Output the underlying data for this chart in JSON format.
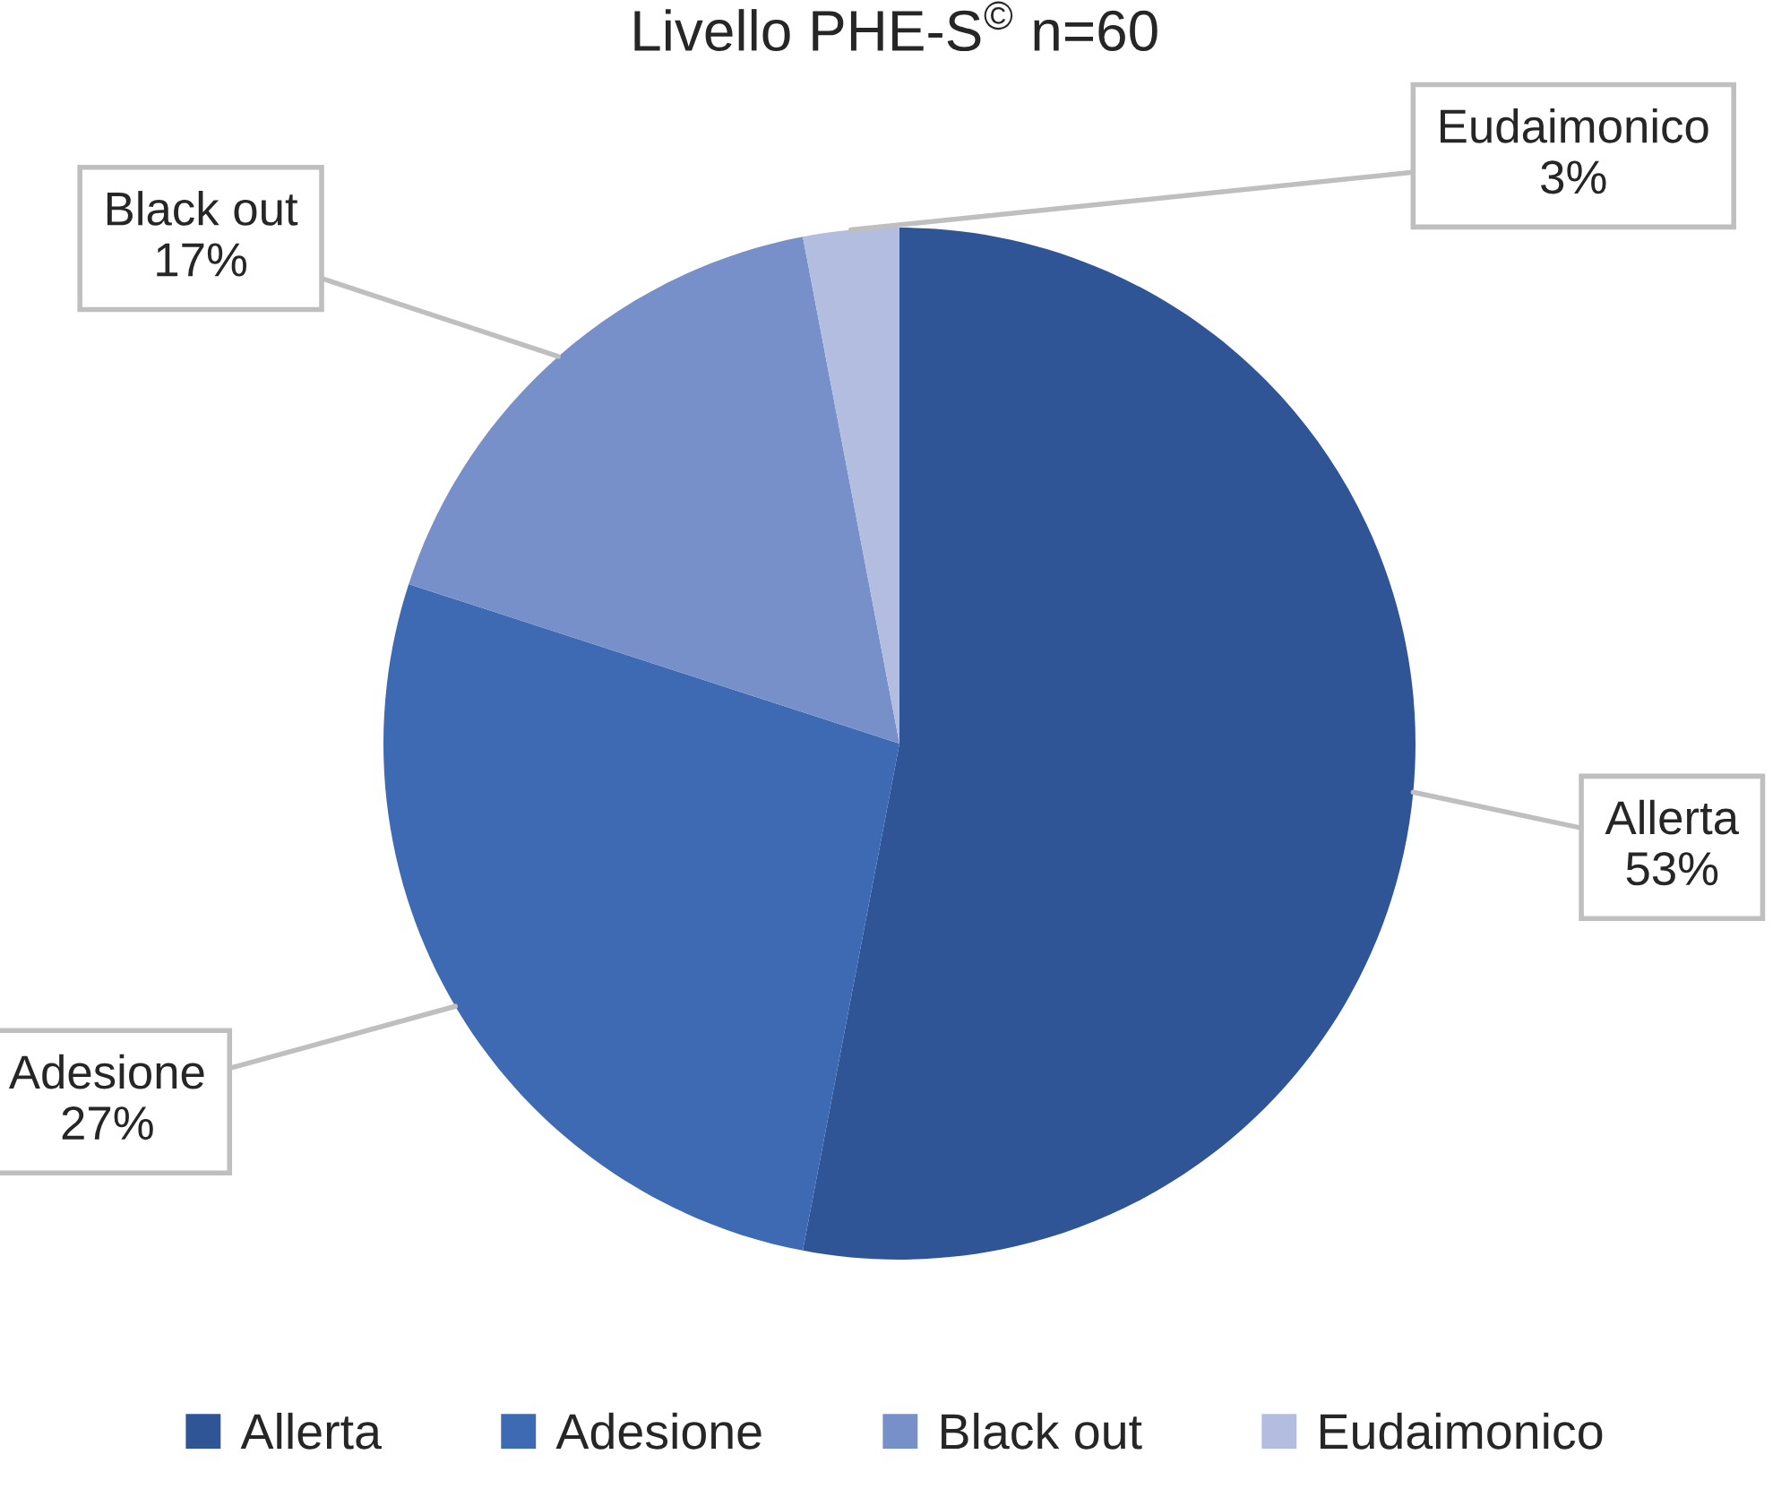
{
  "chart_data": {
    "type": "pie",
    "title": "Livello PHE-S$^{©}$ n=60",
    "categories": [
      "Allerta",
      "Adesione",
      "Black out",
      "Eudaimonico"
    ],
    "values": [
      53,
      27,
      17,
      3
    ],
    "value_labels": [
      "53%",
      "27%",
      "17%",
      "3%"
    ],
    "colors": [
      "#2f5597",
      "#3e6ab3",
      "#7790c9",
      "#b2bde0"
    ],
    "legend": "bottom"
  }
}
